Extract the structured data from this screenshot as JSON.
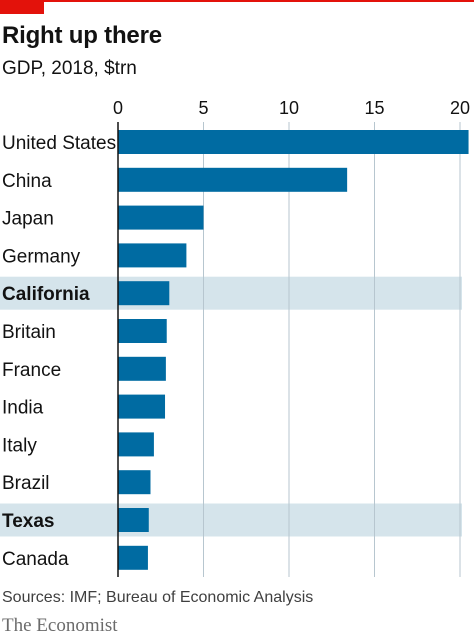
{
  "header": {
    "title": "Right up there",
    "subtitle": "GDP, 2018, $trn"
  },
  "footer": {
    "source": "Sources: IMF; Bureau of Economic Analysis",
    "brand": "The Economist"
  },
  "colors": {
    "accent": "#e3120b",
    "bar": "#006ba2",
    "highlight_band": "#d5e4eb",
    "gridline": "#b7c6cf",
    "axis": "#121212"
  },
  "chart_data": {
    "type": "bar",
    "orientation": "horizontal",
    "title": "Right up there",
    "subtitle": "GDP, 2018, $trn",
    "categories": [
      "United States",
      "China",
      "Japan",
      "Germany",
      "California",
      "Britain",
      "France",
      "India",
      "Italy",
      "Brazil",
      "Texas",
      "Canada"
    ],
    "values": [
      20.5,
      13.4,
      5.0,
      4.0,
      3.0,
      2.85,
      2.8,
      2.75,
      2.1,
      1.9,
      1.8,
      1.75
    ],
    "highlighted": [
      "California",
      "Texas"
    ],
    "xlim": [
      0,
      20
    ],
    "xticks": [
      0,
      5,
      10,
      15,
      20
    ],
    "xtick_labels": [
      "0",
      "5",
      "10",
      "15",
      "20"
    ],
    "tick_position": "top",
    "grid": true,
    "legend": "none"
  }
}
